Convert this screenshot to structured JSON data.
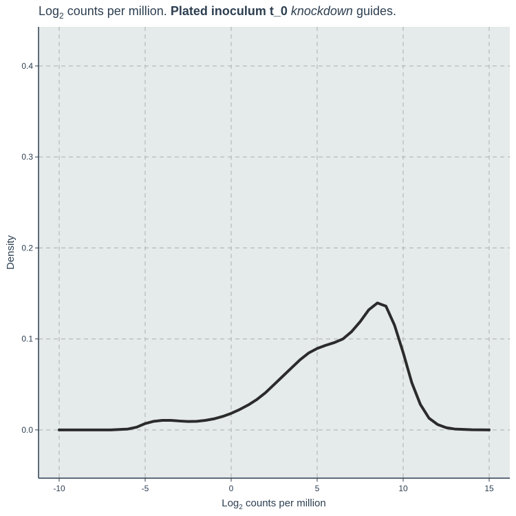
{
  "chart_data": {
    "type": "line",
    "title": {
      "prefix": "Log",
      "prefix_sub": "2",
      "part1": " counts per million. ",
      "bold": "Plated inoculum t_0",
      "part2": " ",
      "italic": "knockdown",
      "part3": " guides."
    },
    "xlabel": {
      "pre": "Log",
      "sub": "2",
      "post": " counts per million"
    },
    "ylabel": "Density",
    "xlim": [
      -11.2,
      16.2
    ],
    "ylim": [
      -0.053,
      0.443
    ],
    "xticks": [
      -10,
      -5,
      0,
      5,
      10,
      15
    ],
    "xtick_labels": [
      "-10",
      "-5",
      "0",
      "5",
      "10",
      "15"
    ],
    "yticks": [
      0.0,
      0.1,
      0.2,
      0.3,
      0.4
    ],
    "ytick_labels": [
      "0.0",
      "0.1",
      "0.2",
      "0.3",
      "0.4"
    ],
    "grid": true,
    "colors": {
      "panel": "#e5eaea",
      "grid": "#b5b9b9",
      "line": "#2b2b2b",
      "axis": "#2c3e50"
    },
    "series": [
      {
        "x": [
          -10,
          -8,
          -7,
          -6,
          -5.5,
          -5,
          -4.5,
          -4,
          -3.5,
          -3,
          -2.5,
          -2,
          -1.5,
          -1,
          -0.5,
          0,
          0.5,
          1,
          1.5,
          2,
          2.5,
          3,
          3.5,
          4,
          4.5,
          5,
          5.5,
          6,
          6.5,
          7,
          7.5,
          8,
          8.5,
          9,
          9.5,
          10,
          10.5,
          11,
          11.5,
          12,
          12.5,
          13,
          14,
          15
        ],
        "y": [
          0.0,
          0.0,
          0.0,
          0.001,
          0.003,
          0.007,
          0.0095,
          0.0105,
          0.0105,
          0.0098,
          0.0093,
          0.0095,
          0.0105,
          0.0122,
          0.0148,
          0.0182,
          0.0225,
          0.0275,
          0.0335,
          0.041,
          0.05,
          0.059,
          0.068,
          0.077,
          0.0845,
          0.0895,
          0.093,
          0.096,
          0.1,
          0.108,
          0.119,
          0.132,
          0.1395,
          0.136,
          0.115,
          0.085,
          0.052,
          0.028,
          0.013,
          0.006,
          0.0025,
          0.001,
          0.0002,
          0.0
        ]
      }
    ]
  }
}
